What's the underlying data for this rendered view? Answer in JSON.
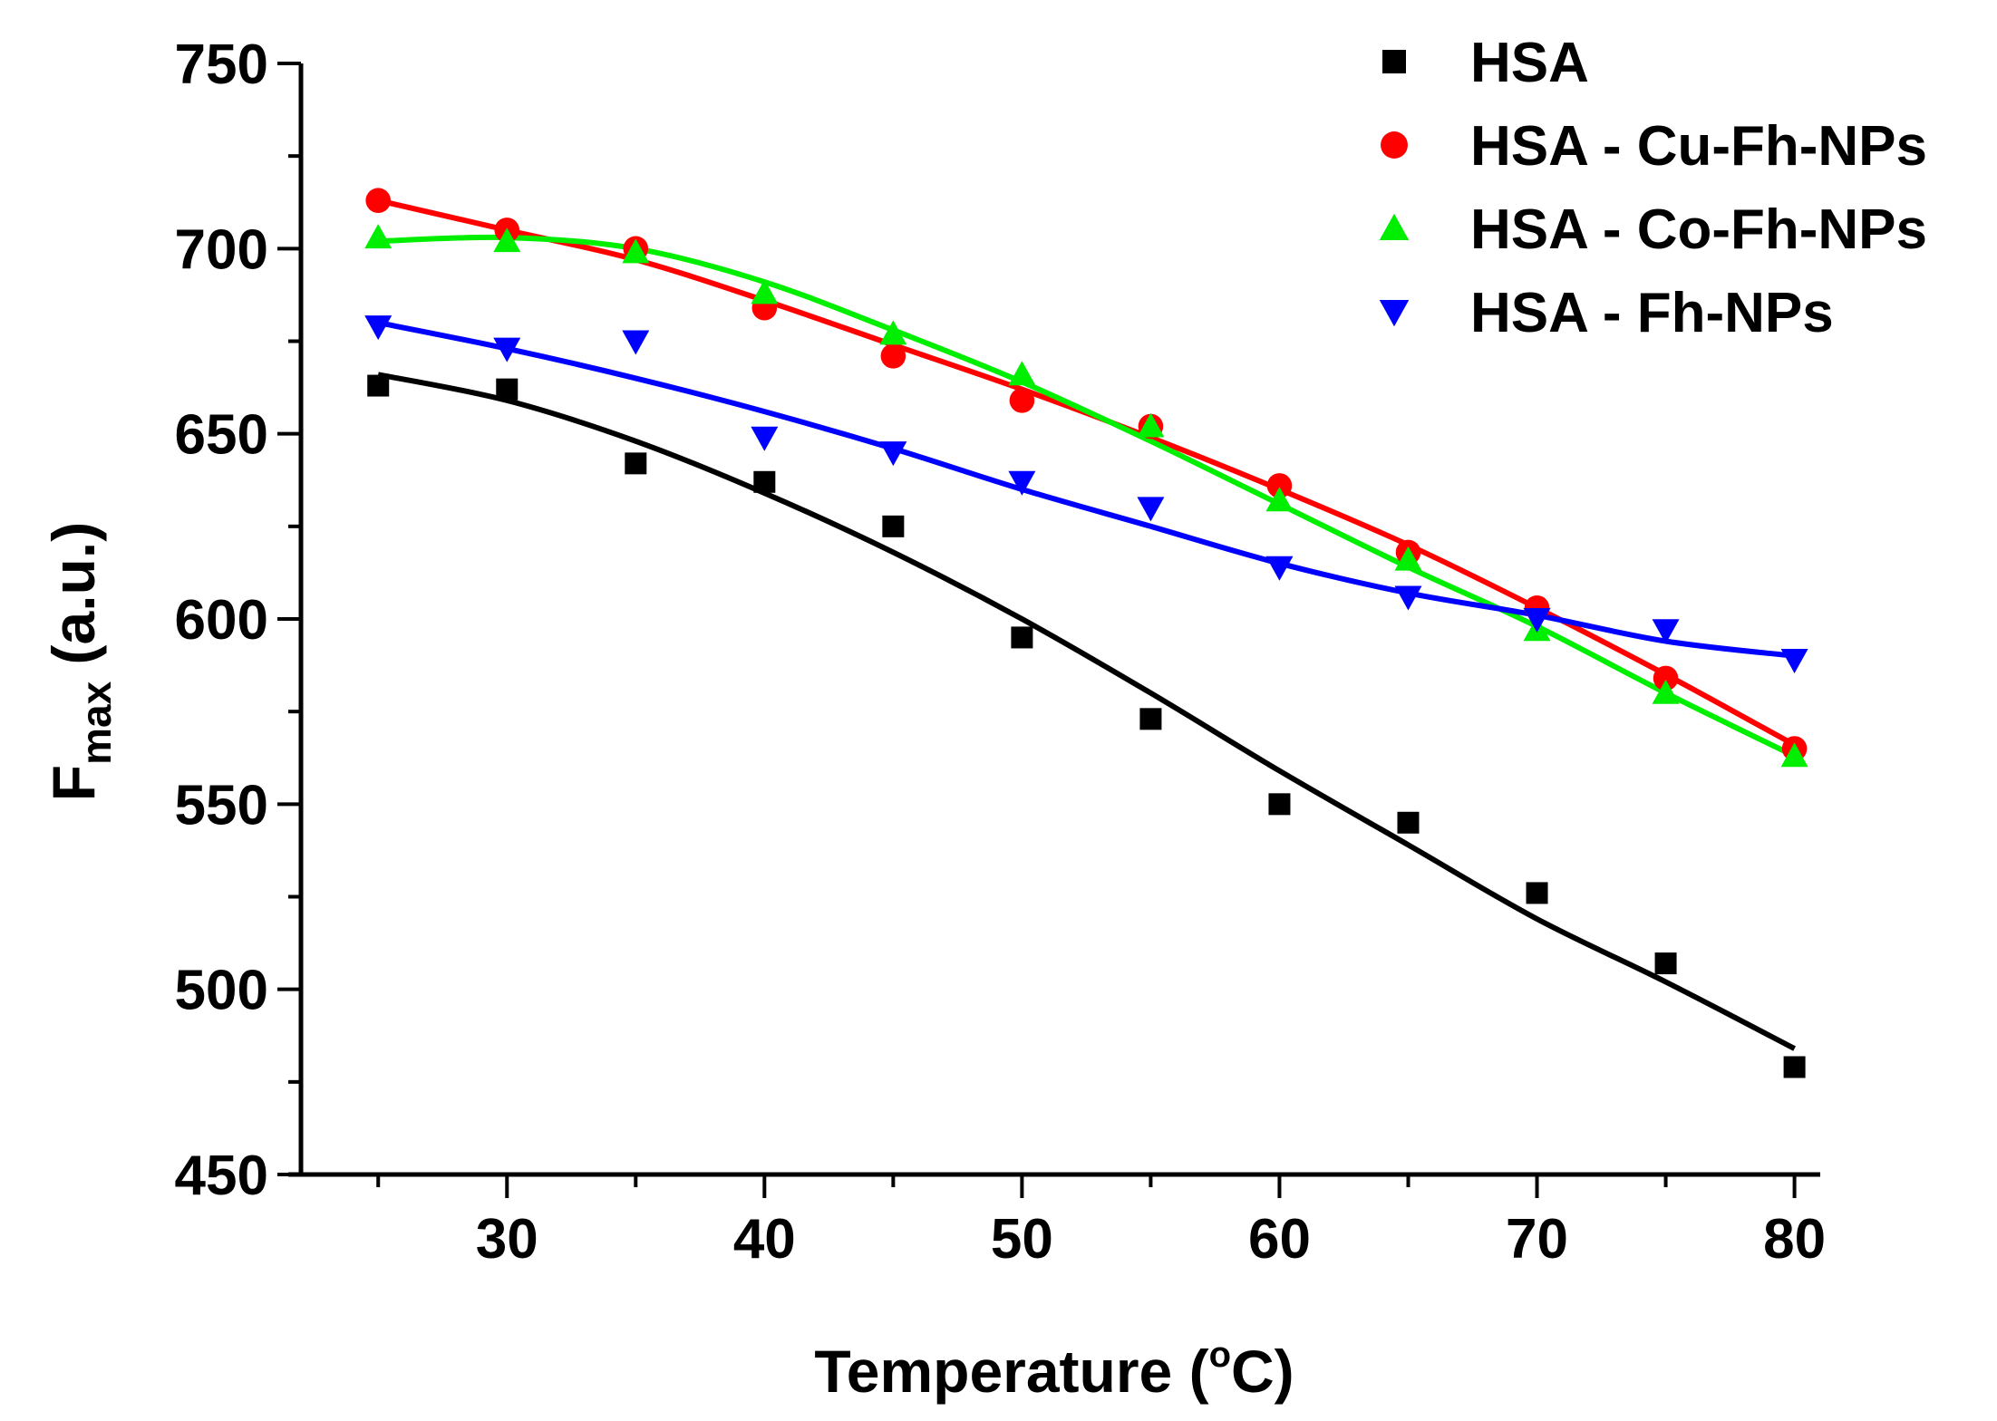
{
  "chart_data": {
    "type": "scatter",
    "title": "",
    "xlabel": "Temperature (°C)",
    "ylabel": "F_max (a.u.)",
    "xlim": [
      22,
      81
    ],
    "ylim": [
      450,
      750
    ],
    "xticks": [
      30,
      40,
      50,
      60,
      70,
      80
    ],
    "yticks": [
      450,
      500,
      550,
      600,
      650,
      700,
      750
    ],
    "grid": false,
    "legend_position": "top-right",
    "x": [
      25,
      30,
      35,
      40,
      45,
      50,
      55,
      60,
      65,
      70,
      75,
      80
    ],
    "series": [
      {
        "name": "HSA",
        "color": "#000000",
        "marker": "square",
        "values": [
          663,
          662,
          642,
          637,
          625,
          595,
          573,
          550,
          545,
          526,
          507,
          479
        ],
        "fit": [
          666,
          659,
          648,
          634,
          618,
          600,
          580,
          559,
          539,
          519,
          502,
          484
        ]
      },
      {
        "name": "HSA - Cu-Fh-NPs",
        "color": "#ff0000",
        "marker": "circle",
        "values": [
          713,
          705,
          700,
          684,
          671,
          659,
          652,
          636,
          618,
          603,
          584,
          565
        ],
        "fit": [
          713,
          705,
          697,
          686,
          674,
          662,
          649,
          635,
          620,
          603,
          585,
          566
        ]
      },
      {
        "name": "HSA - Co-Fh-NPs",
        "color": "#00ee00",
        "marker": "triangle-up",
        "values": [
          703,
          702,
          699,
          688,
          677,
          666,
          652,
          632,
          616,
          597,
          580,
          563
        ],
        "fit": [
          702,
          703,
          700,
          691,
          678,
          664,
          648,
          631,
          614,
          598,
          580,
          563
        ]
      },
      {
        "name": "HSA - Fh-NPs",
        "color": "#0000ff",
        "marker": "triangle-down",
        "values": [
          679,
          673,
          675,
          649,
          645,
          637,
          630,
          614,
          606,
          600,
          597,
          589
        ],
        "fit": [
          680,
          673,
          665,
          656,
          646,
          635,
          625,
          615,
          607,
          601,
          594,
          590
        ]
      }
    ]
  }
}
